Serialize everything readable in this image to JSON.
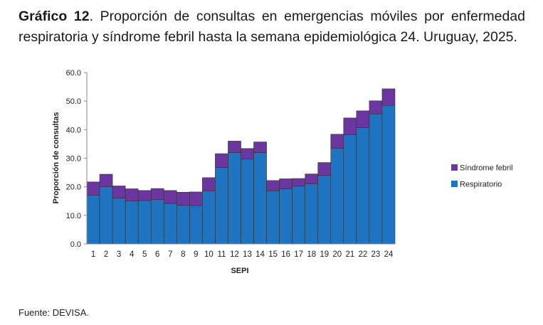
{
  "caption": {
    "bold_part": "Gráfico 12",
    "rest": ". Proporción de consultas en emergencias móviles por enfermedad respiratoria y síndrome febril hasta la semana epidemiológica 24. Uruguay, 2025."
  },
  "source": "Fuente: DEVISA.",
  "colors": {
    "respiratorio": "#1F74C2",
    "sindrome_febril": "#6B36A0",
    "axis": "#888888"
  },
  "chart_data": {
    "type": "bar",
    "stacked": true,
    "title": "",
    "xlabel": "SEPI",
    "ylabel": "Proporción de consultas",
    "ylim": [
      0,
      60
    ],
    "yticks": [
      "0.0",
      "10.0",
      "20.0",
      "30.0",
      "40.0",
      "50.0",
      "60.0"
    ],
    "grid": false,
    "legend_position": "right",
    "categories": [
      "1",
      "2",
      "3",
      "4",
      "5",
      "6",
      "7",
      "8",
      "9",
      "10",
      "11",
      "12",
      "13",
      "14",
      "15",
      "16",
      "17",
      "18",
      "19",
      "20",
      "21",
      "22",
      "23",
      "24"
    ],
    "series": [
      {
        "name": "Respiratorio",
        "values": [
          17.0,
          20.0,
          16.0,
          15.0,
          15.2,
          15.5,
          14.2,
          13.5,
          13.4,
          18.5,
          26.8,
          32.0,
          29.7,
          32.0,
          18.6,
          19.3,
          20.2,
          21.0,
          24.0,
          33.5,
          38.2,
          40.7,
          45.5,
          48.5
        ]
      },
      {
        "name": "Síndrome febril",
        "values": [
          4.7,
          4.4,
          4.3,
          4.3,
          3.5,
          3.9,
          4.5,
          4.6,
          4.8,
          4.7,
          4.8,
          4.0,
          3.7,
          3.7,
          3.6,
          3.5,
          2.7,
          3.5,
          4.5,
          4.9,
          5.9,
          5.9,
          4.6,
          5.8
        ]
      }
    ]
  }
}
